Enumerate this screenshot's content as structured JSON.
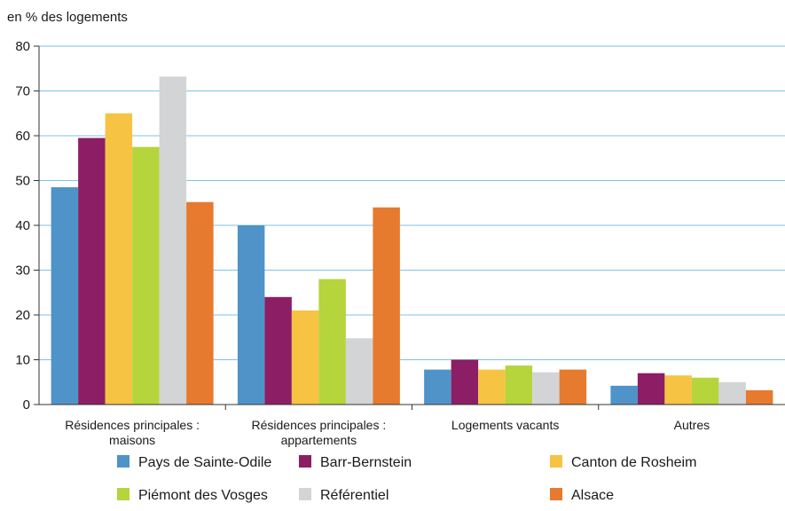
{
  "chart_data": {
    "type": "bar",
    "title": "",
    "ylabel": "en % des logements",
    "xlabel": "",
    "ylim": [
      0,
      80
    ],
    "yticks": [
      0,
      10,
      20,
      30,
      40,
      50,
      60,
      70,
      80
    ],
    "grid": true,
    "legend_position": "bottom",
    "categories": [
      [
        "Résidences principales :",
        "maisons"
      ],
      [
        "Résidences principales :",
        "appartements"
      ],
      [
        "Logements vacants"
      ],
      [
        "Autres"
      ]
    ],
    "series": [
      {
        "name": "Pays de Sainte-Odile",
        "color": "#4f93c9",
        "values": [
          48.5,
          40.0,
          7.8,
          4.2
        ]
      },
      {
        "name": "Barr-Bernstein",
        "color": "#8b1e64",
        "values": [
          59.5,
          24.0,
          10.0,
          7.0
        ]
      },
      {
        "name": "Canton de Rosheim",
        "color": "#f6c343",
        "values": [
          65.0,
          21.0,
          7.8,
          6.5
        ]
      },
      {
        "name": "Piémont des Vosges",
        "color": "#b6d43c",
        "values": [
          57.5,
          28.0,
          8.7,
          6.0
        ]
      },
      {
        "name": "Référentiel",
        "color": "#d3d4d6",
        "values": [
          73.2,
          14.8,
          7.2,
          5.0
        ]
      },
      {
        "name": "Alsace",
        "color": "#e67a2e",
        "values": [
          45.2,
          44.0,
          7.8,
          3.2
        ]
      }
    ],
    "colors": {
      "gridline": "#7ec3e6",
      "axis": "#333333"
    }
  }
}
